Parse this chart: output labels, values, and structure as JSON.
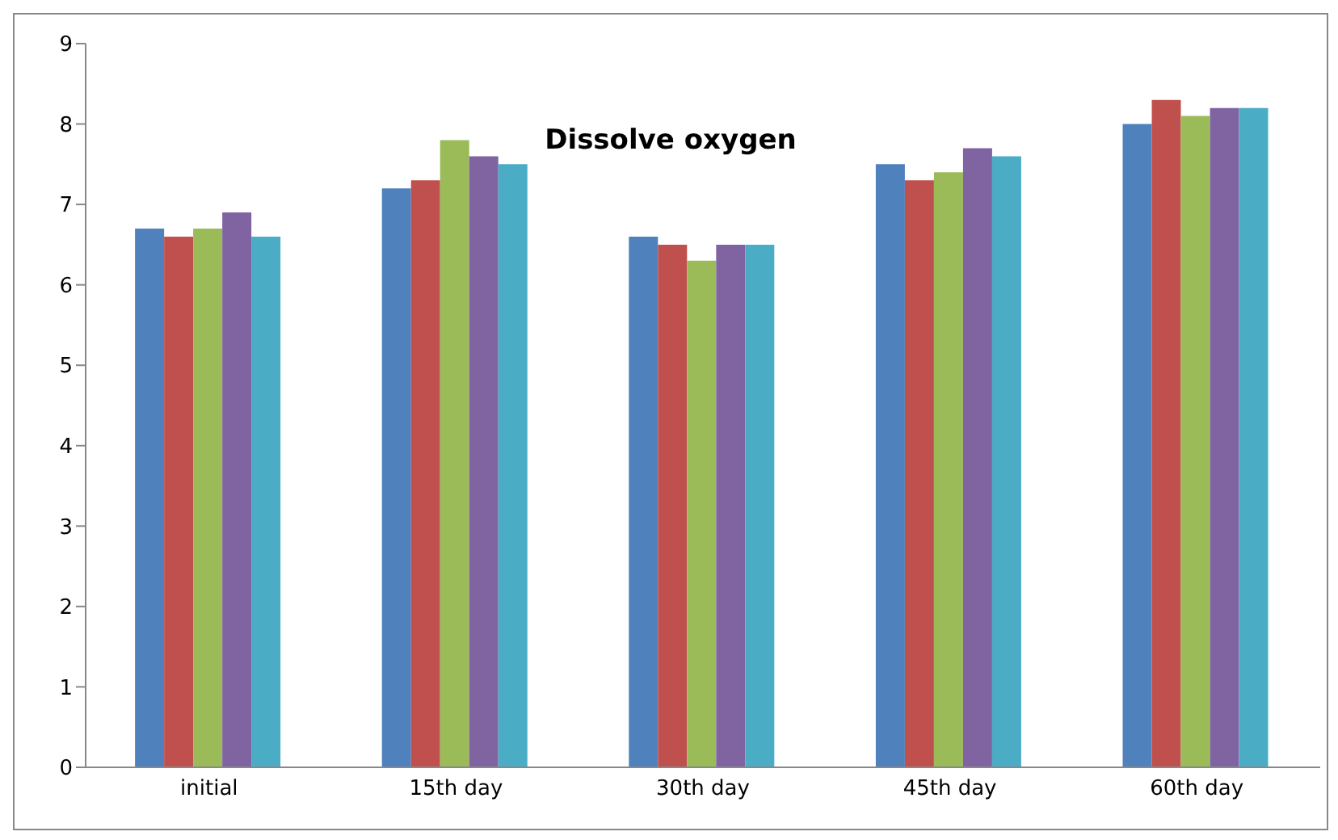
{
  "chart_data": {
    "type": "bar",
    "title": "Dissolve oxygen",
    "categories": [
      "initial",
      "15th day",
      "30th day",
      "45th day",
      "60th day"
    ],
    "series": [
      {
        "color": "#4f81bd",
        "values": [
          6.7,
          7.2,
          6.6,
          7.5,
          8.0
        ]
      },
      {
        "color": "#c0504d",
        "values": [
          6.6,
          7.3,
          6.5,
          7.3,
          8.3
        ]
      },
      {
        "color": "#9bbb59",
        "values": [
          6.7,
          7.8,
          6.3,
          7.4,
          8.1
        ]
      },
      {
        "color": "#8064a2",
        "values": [
          6.9,
          7.6,
          6.5,
          7.7,
          8.2
        ]
      },
      {
        "color": "#4bacc6",
        "values": [
          6.6,
          7.5,
          6.5,
          7.6,
          8.2
        ]
      }
    ],
    "ylim": [
      0,
      9
    ],
    "yticks": [
      0,
      1,
      2,
      3,
      4,
      5,
      6,
      7,
      8,
      9
    ],
    "grid": false,
    "legend": false
  }
}
